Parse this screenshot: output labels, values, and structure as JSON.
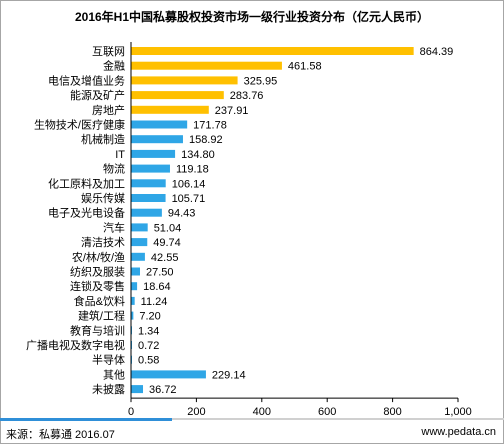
{
  "chart_data": {
    "type": "bar",
    "orientation": "horizontal",
    "title": "2016年H1中国私募股权投资市场一级行业投资分布（亿元人民币）",
    "categories": [
      "互联网",
      "金融",
      "电信及增值业务",
      "能源及矿产",
      "房地产",
      "生物技术/医疗健康",
      "机械制造",
      "IT",
      "物流",
      "化工原料及加工",
      "娱乐传媒",
      "电子及光电设备",
      "汽车",
      "清洁技术",
      "农/林/牧/渔",
      "纺织及服装",
      "连锁及零售",
      "食品&饮料",
      "建筑/工程",
      "教育与培训",
      "广播电视及数字电视",
      "半导体",
      "其他",
      "未披露"
    ],
    "values": [
      864.39,
      461.58,
      325.95,
      283.76,
      237.91,
      171.78,
      158.92,
      134.8,
      119.18,
      106.14,
      105.71,
      94.43,
      51.04,
      49.74,
      42.55,
      27.5,
      18.64,
      11.24,
      7.2,
      1.34,
      0.72,
      0.58,
      229.14,
      36.72
    ],
    "value_labels": [
      "864.39",
      "461.58",
      "325.95",
      "283.76",
      "237.91",
      "171.78",
      "158.92",
      "134.80",
      "119.18",
      "106.14",
      "105.71",
      "94.43",
      "51.04",
      "49.74",
      "42.55",
      "27.50",
      "18.64",
      "11.24",
      "7.20",
      "1.34",
      "0.72",
      "0.58",
      "229.14",
      "36.72"
    ],
    "highlight_count": 5,
    "colors": {
      "highlight": "#ffc000",
      "normal": "#2fa6e6",
      "axis": "#000000"
    },
    "xlim": [
      0,
      1000
    ],
    "xticks": [
      0,
      200,
      400,
      600,
      800,
      1000
    ],
    "xtick_labels": [
      "0",
      "200",
      "400",
      "600",
      "800",
      "1,000"
    ],
    "grid": false,
    "legend": "none"
  },
  "footer": {
    "source": "来源：私募通 2016.07",
    "site": "www.pedata.cn"
  }
}
